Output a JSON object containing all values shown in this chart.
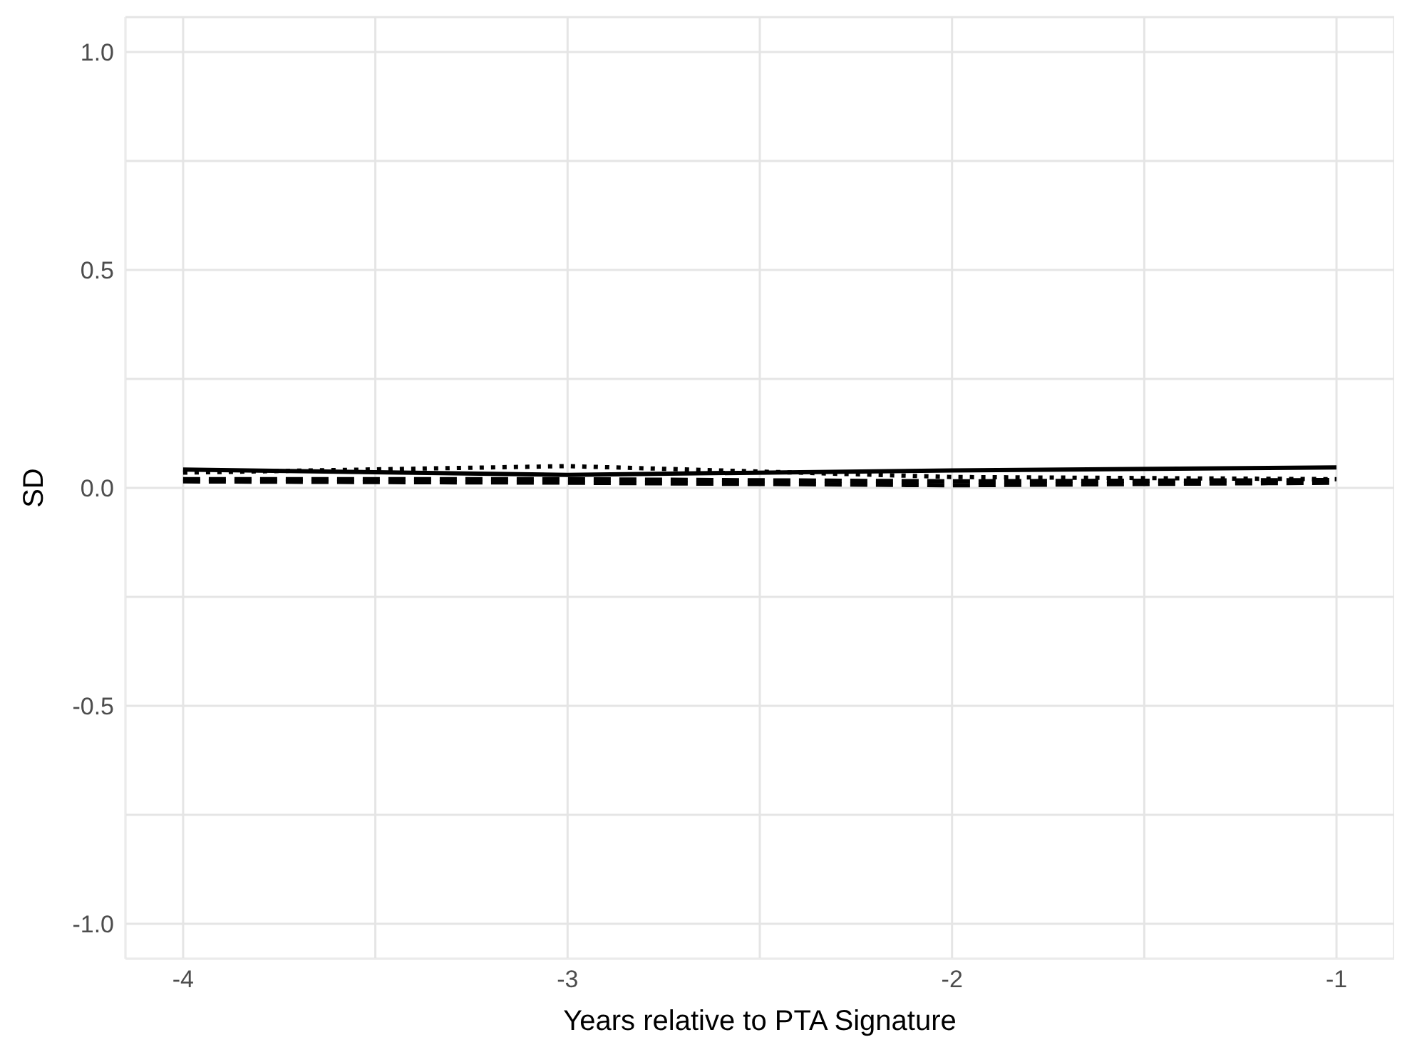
{
  "chart_data": {
    "type": "line",
    "xlabel": "Years relative to PTA Signature",
    "ylabel": "SD",
    "x": [
      -4,
      -3,
      -2,
      -1
    ],
    "series": [
      {
        "color": "#000000",
        "line_style": "solid",
        "values": [
          0.042,
          0.03,
          0.04,
          0.047
        ]
      },
      {
        "color": "#000000",
        "line_style": "dotted",
        "values": [
          0.035,
          0.05,
          0.025,
          0.02
        ]
      },
      {
        "color": "#000000",
        "line_style": "dashed",
        "values": [
          0.02,
          0.02,
          0.015,
          0.018
        ]
      },
      {
        "color": "#000000",
        "line_style": "dashed",
        "values": [
          0.015,
          0.012,
          0.006,
          0.012
        ]
      }
    ],
    "xlim": [
      -4.15,
      -0.85
    ],
    "xticks": [
      -4,
      {
        "value": -3.5,
        "label": null
      },
      -3,
      {
        "value": -2.5,
        "label": null
      },
      -2,
      {
        "value": -1.5,
        "label": null
      },
      -1
    ],
    "ylim": [
      -1.08,
      1.08
    ],
    "yticks": [
      {
        "value": -1,
        "label": "-1.0"
      },
      {
        "value": -0.75,
        "label": null
      },
      {
        "value": -0.5,
        "label": "-0.5"
      },
      {
        "value": -0.25,
        "label": null
      },
      {
        "value": 0,
        "label": "0.0"
      },
      {
        "value": 0.25,
        "label": null
      },
      {
        "value": 0.5,
        "label": "0.5"
      },
      {
        "value": 0.75,
        "label": null
      },
      {
        "value": 1,
        "label": "1.0"
      }
    ],
    "grid": true,
    "marker": "none"
  }
}
